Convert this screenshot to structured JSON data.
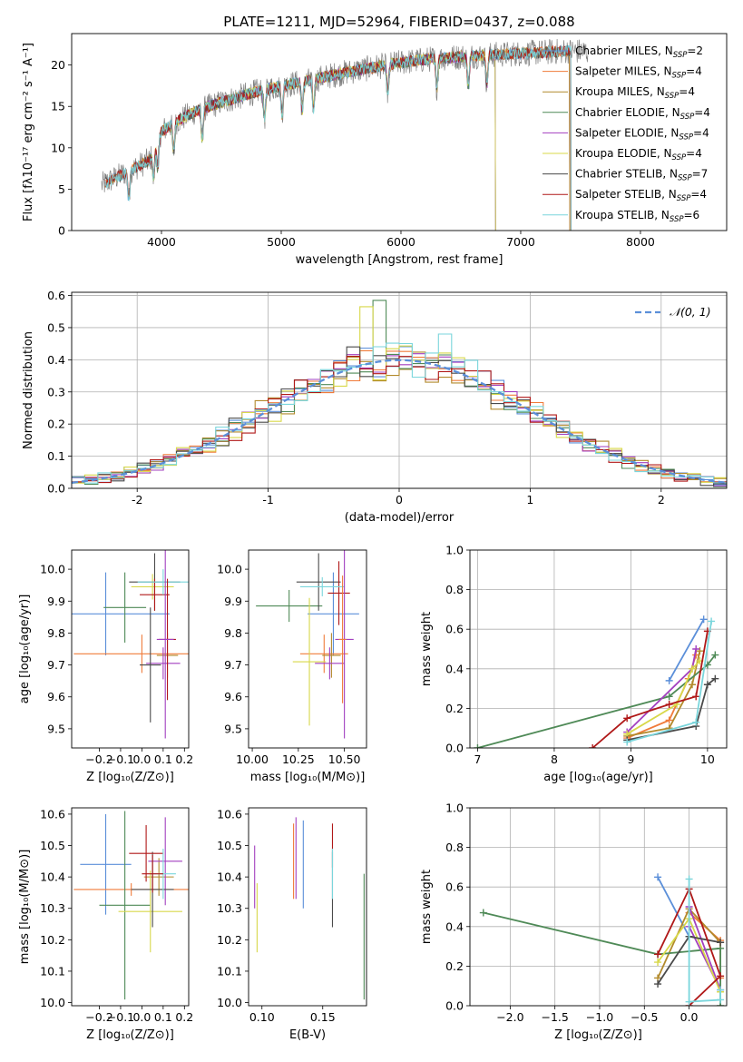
{
  "figure_title": "PLATE=1211, MJD=52964, FIBERID=0437, z=0.088",
  "colors": {
    "Chabrier MILES": "#5b8fd9",
    "Salpeter MILES": "#f07b3a",
    "Kroupa MILES": "#b28a2c",
    "Chabrier ELODIE": "#4f8a57",
    "Salpeter ELODIE": "#a23fbf",
    "Kroupa ELODIE": "#d8d84a",
    "Chabrier STELIB": "#4a4a4a",
    "Salpeter STELIB": "#b01818",
    "Kroupa STELIB": "#7ad6dc",
    "normal": "#5b8fd9"
  },
  "chart_data": [
    {
      "id": "spectrum",
      "type": "line",
      "title": "PLATE=1211, MJD=52964, FIBERID=0437, z=0.088",
      "xlabel": "wavelength [Angstrom, rest frame]",
      "ylabel": "Flux [fλ10⁻¹⁷ erg cm⁻² s⁻¹ A⁻¹]",
      "xlim": [
        3250,
        8720
      ],
      "ylim": [
        0,
        23.8
      ],
      "xticks": [
        4000,
        5000,
        6000,
        7000,
        8000
      ],
      "yticks": [
        0,
        5,
        10,
        15,
        20
      ],
      "legend_position": "upper-right",
      "legend": [
        {
          "name": "Chabrier MILES",
          "nssp": "2"
        },
        {
          "name": "Salpeter MILES",
          "nssp": "4"
        },
        {
          "name": "Kroupa MILES",
          "nssp": "4"
        },
        {
          "name": "Chabrier ELODIE",
          "nssp": "4"
        },
        {
          "name": "Salpeter ELODIE",
          "nssp": "4"
        },
        {
          "name": "Kroupa ELODIE",
          "nssp": "4"
        },
        {
          "name": "Chabrier STELIB",
          "nssp": "7"
        },
        {
          "name": "Salpeter STELIB",
          "nssp": "4"
        },
        {
          "name": "Kroupa STELIB",
          "nssp": "6"
        }
      ],
      "continuum": {
        "x": [
          3500,
          3700,
          3900,
          4000,
          4100,
          4300,
          4500,
          4800,
          5000,
          5200,
          5500,
          5800,
          6000,
          6300,
          6600,
          7000,
          7400,
          7600
        ],
        "y": [
          5.5,
          7.0,
          8.5,
          12.0,
          13.0,
          14.5,
          15.5,
          16.8,
          17.5,
          18.0,
          19.0,
          19.8,
          20.3,
          20.8,
          21.1,
          21.4,
          21.7,
          21.6
        ]
      },
      "data_range": [
        3500,
        7560
      ],
      "models": [
        {
          "name": "Chabrier MILES",
          "x_range": [
            3530,
            7410
          ]
        },
        {
          "name": "Salpeter MILES",
          "x_range": [
            3530,
            7410
          ]
        },
        {
          "name": "Kroupa MILES",
          "x_range": [
            3530,
            7410
          ]
        },
        {
          "name": "Chabrier ELODIE",
          "x_range": [
            3900,
            6790
          ]
        },
        {
          "name": "Salpeter ELODIE",
          "x_range": [
            3900,
            6790
          ]
        },
        {
          "name": "Kroupa ELODIE",
          "x_range": [
            3900,
            6790
          ]
        },
        {
          "name": "Chabrier STELIB",
          "x_range": [
            3530,
            7420
          ]
        },
        {
          "name": "Salpeter STELIB",
          "x_range": [
            3530,
            7420
          ]
        },
        {
          "name": "Kroupa STELIB",
          "x_range": [
            3530,
            7420
          ]
        }
      ]
    },
    {
      "id": "residuals",
      "type": "area",
      "xlabel": "(data-model)/error",
      "ylabel": "Normed distribution",
      "xlim": [
        -2.5,
        2.5
      ],
      "ylim": [
        0,
        0.61
      ],
      "xticks": [
        -2,
        -1,
        0,
        1,
        2
      ],
      "yticks": [
        0.0,
        0.1,
        0.2,
        0.3,
        0.4,
        0.5,
        0.6
      ],
      "bin_width": 0.1,
      "grid": true,
      "legend_position": "upper-right",
      "legend_label": "𝒩(0, 1)",
      "spiky_bins": [
        {
          "x": -0.2,
          "series": "Chabrier ELODIE",
          "value": 0.585
        },
        {
          "x": -0.3,
          "series": "Kroupa ELODIE",
          "value": 0.565
        },
        {
          "x": 0.3,
          "series": "Kroupa STELIB",
          "value": 0.48
        },
        {
          "x": -0.4,
          "series": "Chabrier STELIB",
          "value": 0.44
        }
      ]
    },
    {
      "id": "age_vs_z",
      "type": "scatter",
      "xlabel": "Z [log₁₀(Z/Z⊙)]",
      "ylabel": "age  [log₁₀(age/yr)]",
      "xlim": [
        -0.33,
        0.22
      ],
      "ylim": [
        9.44,
        10.06
      ],
      "xticks": [
        -0.2,
        -0.1,
        0.0,
        0.1,
        0.2
      ],
      "xticklabels": [
        "−0.2",
        "−0.1",
        "0.0",
        "0.1",
        "0.2"
      ],
      "yticks": [
        9.5,
        9.6,
        9.7,
        9.8,
        9.9,
        10.0
      ],
      "points": [
        {
          "series": "Chabrier MILES",
          "x": -0.17,
          "y": 9.86,
          "xerr": 0.3,
          "yerr": 0.13
        },
        {
          "series": "Salpeter MILES",
          "x": 0.0,
          "y": 9.735,
          "xerr": 0.32,
          "yerr": 0.06
        },
        {
          "series": "Kroupa MILES",
          "x": 0.12,
          "y": 9.73,
          "xerr": 0.05,
          "yerr": 0.07
        },
        {
          "series": "Chabrier ELODIE",
          "x": -0.08,
          "y": 9.88,
          "xerr": 0.1,
          "yerr": 0.11
        },
        {
          "series": "Salpeter ELODIE",
          "x": 0.1,
          "y": 9.705,
          "xerr": 0.08,
          "yerr": 0.05
        },
        {
          "series": "Kroupa ELODIE",
          "x": 0.05,
          "y": 9.945,
          "xerr": 0.1,
          "yerr": 0.04
        },
        {
          "series": "Chabrier STELIB",
          "x": 0.06,
          "y": 9.96,
          "xerr": 0.12,
          "yerr": 0.09
        },
        {
          "series": "Salpeter STELIB",
          "x": 0.06,
          "y": 9.92,
          "xerr": 0.07,
          "yerr": 0.05
        },
        {
          "series": "Kroupa STELIB",
          "x": 0.1,
          "y": 9.96,
          "xerr": 0.12,
          "yerr": 0.04
        },
        {
          "series": "Chabrier STELIB",
          "x": 0.04,
          "y": 9.7,
          "xerr": 0.05,
          "yerr": 0.18
        },
        {
          "series": "Salpeter STELIB",
          "x": 0.12,
          "y": 9.78,
          "xerr": 0.04,
          "yerr": 0.19
        },
        {
          "series": "Salpeter ELODIE",
          "x": 0.11,
          "y": 9.78,
          "xerr": 0.04,
          "yerr": 0.31
        }
      ]
    },
    {
      "id": "age_vs_mass",
      "type": "scatter",
      "xlabel": "mass [log₁₀(M/M⊙)]",
      "xlim": [
        9.98,
        10.62
      ],
      "ylim": [
        9.44,
        10.06
      ],
      "xticks": [
        10.0,
        10.25,
        10.5
      ],
      "xticklabels": [
        "10.00",
        "10.25",
        "10.50"
      ],
      "yticks": [
        9.5,
        9.6,
        9.7,
        9.8,
        9.9,
        10.0
      ],
      "points": [
        {
          "series": "Chabrier MILES",
          "x": 10.44,
          "y": 9.86,
          "xerr": 0.14,
          "yerr": 0.13
        },
        {
          "series": "Salpeter MILES",
          "x": 10.39,
          "y": 9.735,
          "xerr": 0.13,
          "yerr": 0.06
        },
        {
          "series": "Kroupa MILES",
          "x": 10.43,
          "y": 9.73,
          "xerr": 0.05,
          "yerr": 0.07
        },
        {
          "series": "Chabrier ELODIE",
          "x": 10.2,
          "y": 9.885,
          "xerr": 0.18,
          "yerr": 0.05
        },
        {
          "series": "Salpeter ELODIE",
          "x": 10.42,
          "y": 9.705,
          "xerr": 0.08,
          "yerr": 0.05
        },
        {
          "series": "Kroupa ELODIE",
          "x": 10.31,
          "y": 9.71,
          "xerr": 0.09,
          "yerr": 0.2
        },
        {
          "series": "Chabrier STELIB",
          "x": 10.36,
          "y": 9.96,
          "xerr": 0.12,
          "yerr": 0.09
        },
        {
          "series": "Salpeter STELIB",
          "x": 10.47,
          "y": 9.925,
          "xerr": 0.06,
          "yerr": 0.1
        },
        {
          "series": "Kroupa STELIB",
          "x": 10.38,
          "y": 9.945,
          "xerr": 0.12,
          "yerr": 0.03
        },
        {
          "series": "Salpeter ELODIE",
          "x": 10.5,
          "y": 9.78,
          "xerr": 0.05,
          "yerr": 0.31
        },
        {
          "series": "Salpeter MILES",
          "x": 10.49,
          "y": 9.78,
          "xerr": 0.02,
          "yerr": 0.2
        }
      ]
    },
    {
      "id": "weight_vs_age",
      "type": "line",
      "xlabel": "age  [log₁₀(age/yr)]",
      "ylabel": "mass weight",
      "xlim": [
        6.9,
        10.25
      ],
      "ylim": [
        0,
        1.0
      ],
      "xticks": [
        7,
        8,
        9,
        10
      ],
      "yticks": [
        0.0,
        0.2,
        0.4,
        0.6,
        0.8,
        1.0
      ],
      "grid": true,
      "series": [
        {
          "name": "Chabrier MILES",
          "x": [
            9.5,
            9.95
          ],
          "y": [
            0.34,
            0.65
          ]
        },
        {
          "name": "Salpeter MILES",
          "x": [
            8.95,
            9.5,
            9.75,
            9.85
          ],
          "y": [
            0.05,
            0.14,
            0.35,
            0.47
          ]
        },
        {
          "name": "Kroupa MILES",
          "x": [
            8.95,
            9.5,
            9.8,
            9.9
          ],
          "y": [
            0.06,
            0.1,
            0.32,
            0.49
          ]
        },
        {
          "name": "Chabrier ELODIE",
          "x": [
            7.0,
            9.5,
            10.0,
            10.1
          ],
          "y": [
            0.0,
            0.26,
            0.42,
            0.47
          ]
        },
        {
          "name": "Salpeter ELODIE",
          "x": [
            8.95,
            9.8,
            9.85
          ],
          "y": [
            0.08,
            0.4,
            0.5
          ]
        },
        {
          "name": "Kroupa ELODIE",
          "x": [
            8.95,
            9.6,
            9.8,
            9.9
          ],
          "y": [
            0.07,
            0.22,
            0.4,
            0.44
          ]
        },
        {
          "name": "Chabrier STELIB",
          "x": [
            8.95,
            9.85,
            10.0,
            10.1
          ],
          "y": [
            0.04,
            0.11,
            0.32,
            0.35
          ]
        },
        {
          "name": "Salpeter STELIB",
          "x": [
            8.5,
            8.95,
            9.5,
            9.85,
            10.0
          ],
          "y": [
            0.0,
            0.15,
            0.22,
            0.26,
            0.59
          ]
        },
        {
          "name": "Kroupa STELIB",
          "x": [
            8.95,
            9.85,
            10.05
          ],
          "y": [
            0.03,
            0.13,
            0.64
          ]
        }
      ]
    },
    {
      "id": "mass_vs_z",
      "type": "scatter",
      "xlabel": "Z [log₁₀(Z/Z⊙)]",
      "ylabel": "mass [log₁₀(M/M⊙)]",
      "xlim": [
        -0.33,
        0.22
      ],
      "ylim": [
        9.99,
        10.62
      ],
      "xticks": [
        -0.2,
        -0.1,
        0.0,
        0.1,
        0.2
      ],
      "xticklabels": [
        "−0.2",
        "−0.1",
        "0.0",
        "0.1",
        "0.2"
      ],
      "yticks": [
        10.0,
        10.1,
        10.2,
        10.3,
        10.4,
        10.5,
        10.6
      ],
      "points": [
        {
          "series": "Chabrier MILES",
          "x": -0.17,
          "y": 10.44,
          "xerr": 0.12,
          "yerr": 0.16
        },
        {
          "series": "Salpeter MILES",
          "x": -0.05,
          "y": 10.36,
          "xerr": 0.27,
          "yerr": 0.02
        },
        {
          "series": "Kroupa MILES",
          "x": 0.08,
          "y": 10.4,
          "xerr": 0.07,
          "yerr": 0.06
        },
        {
          "series": "Chabrier ELODIE",
          "x": -0.08,
          "y": 10.31,
          "xerr": 0.12,
          "yerr": 0.3
        },
        {
          "series": "Salpeter ELODIE",
          "x": 0.11,
          "y": 10.45,
          "xerr": 0.08,
          "yerr": 0.14
        },
        {
          "series": "Kroupa ELODIE",
          "x": 0.04,
          "y": 10.29,
          "xerr": 0.15,
          "yerr": 0.13
        },
        {
          "series": "Chabrier STELIB",
          "x": 0.05,
          "y": 10.36,
          "xerr": 0.1,
          "yerr": 0.12
        },
        {
          "series": "Salpeter STELIB",
          "x": 0.02,
          "y": 10.475,
          "xerr": 0.08,
          "yerr": 0.09
        },
        {
          "series": "Kroupa STELIB",
          "x": 0.1,
          "y": 10.41,
          "xerr": 0.06,
          "yerr": 0.08
        },
        {
          "series": "Salpeter STELIB",
          "x": 0.05,
          "y": 10.41,
          "xerr": 0.05,
          "yerr": 0.06
        }
      ]
    },
    {
      "id": "mass_vs_ebv",
      "type": "scatter",
      "xlabel": "E(B-V)",
      "xlim": [
        0.089,
        0.186
      ],
      "ylim": [
        9.99,
        10.62
      ],
      "xticks": [
        0.1,
        0.15
      ],
      "xticklabels": [
        "0.10",
        "0.15"
      ],
      "yticks": [
        10.0,
        10.1,
        10.2,
        10.3,
        10.4,
        10.5,
        10.6
      ],
      "points": [
        {
          "series": "Salpeter ELODIE",
          "x": 0.094,
          "y": 10.4,
          "yerr": 0.1
        },
        {
          "series": "Kroupa ELODIE",
          "x": 0.096,
          "y": 10.27,
          "yerr": 0.11
        },
        {
          "series": "Salpeter MILES",
          "x": 0.126,
          "y": 10.45,
          "yerr": 0.12
        },
        {
          "series": "Salpeter ELODIE",
          "x": 0.128,
          "y": 10.46,
          "yerr": 0.13
        },
        {
          "series": "Chabrier MILES",
          "x": 0.134,
          "y": 10.44,
          "yerr": 0.14
        },
        {
          "series": "Salpeter STELIB",
          "x": 0.158,
          "y": 10.5,
          "yerr": 0.07
        },
        {
          "series": "Chabrier STELIB",
          "x": 0.158,
          "y": 10.36,
          "yerr": 0.12
        },
        {
          "series": "Kroupa STELIB",
          "x": 0.158,
          "y": 10.41,
          "yerr": 0.08
        },
        {
          "series": "Chabrier ELODIE",
          "x": 0.184,
          "y": 10.21,
          "yerr": 0.2
        }
      ]
    },
    {
      "id": "weight_vs_z",
      "type": "line",
      "xlabel": "Z [log₁₀(Z/Z⊙)]",
      "ylabel": "mass weight",
      "xlim": [
        -2.45,
        0.42
      ],
      "ylim": [
        0,
        1.0
      ],
      "xticks": [
        -2.0,
        -1.5,
        -1.0,
        -0.5,
        0.0
      ],
      "xticklabels": [
        "−2.0",
        "−1.5",
        "−1.0",
        "−0.5",
        "0.0"
      ],
      "yticks": [
        0.0,
        0.2,
        0.4,
        0.6,
        0.8,
        1.0
      ],
      "grid": true,
      "series": [
        {
          "name": "Chabrier MILES",
          "x": [
            -0.35,
            0.0
          ],
          "y": [
            0.65,
            0.35
          ]
        },
        {
          "name": "Salpeter MILES",
          "x": [
            0.0,
            0.35,
            0.35
          ],
          "y": [
            0.47,
            0.33,
            0.14
          ]
        },
        {
          "name": "Kroupa MILES",
          "x": [
            -0.35,
            0.0,
            0.35
          ],
          "y": [
            0.14,
            0.49,
            0.32
          ]
        },
        {
          "name": "Chabrier ELODIE",
          "x": [
            -2.3,
            -0.35,
            0.35,
            0.35
          ],
          "y": [
            0.47,
            0.26,
            0.29,
            0.0
          ]
        },
        {
          "name": "Salpeter ELODIE",
          "x": [
            0.0,
            0.35,
            0.0
          ],
          "y": [
            0.5,
            0.08,
            0.4
          ]
        },
        {
          "name": "Kroupa ELODIE",
          "x": [
            -0.35,
            0.0,
            0.35
          ],
          "y": [
            0.22,
            0.44,
            0.07
          ]
        },
        {
          "name": "Chabrier STELIB",
          "x": [
            -0.35,
            0.0,
            0.35
          ],
          "y": [
            0.11,
            0.35,
            0.32
          ]
        },
        {
          "name": "Salpeter STELIB",
          "x": [
            -0.35,
            0.0,
            0.35,
            0.0
          ],
          "y": [
            0.26,
            0.59,
            0.15,
            0.0
          ]
        },
        {
          "name": "Kroupa STELIB",
          "x": [
            0.0,
            0.0,
            0.35,
            0.35
          ],
          "y": [
            0.64,
            0.02,
            0.03,
            0.08
          ]
        }
      ]
    }
  ]
}
